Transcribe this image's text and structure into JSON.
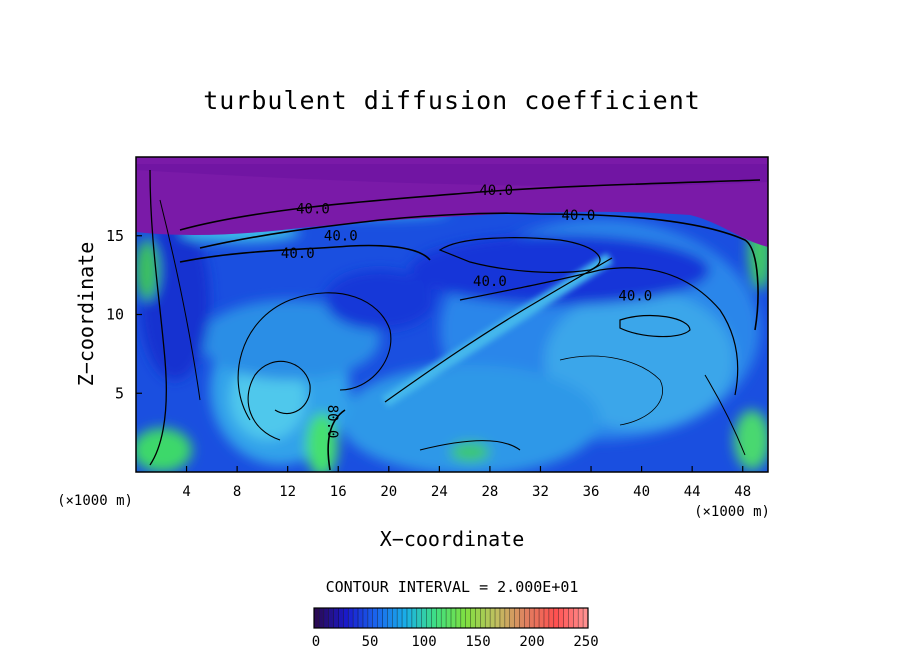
{
  "chart_data": {
    "type": "heatmap",
    "title": "turbulent diffusion coefficient",
    "xlabel": "X−coordinate",
    "ylabel": "Z−coordinate",
    "x_unit": "(×1000 m)",
    "z_unit": "(×1000 m)",
    "xlim": [
      0,
      50
    ],
    "ylim": [
      0,
      20
    ],
    "x_ticks": [
      4,
      8,
      12,
      16,
      20,
      24,
      28,
      32,
      36,
      40,
      44,
      48
    ],
    "y_ticks": [
      5,
      10,
      15
    ],
    "contour_interval_text": "CONTOUR INTERVAL = 2.000E+01",
    "contour_labels": [
      {
        "text": "40.0",
        "x": 28.5,
        "z": 17.6
      },
      {
        "text": "40.0",
        "x": 35.0,
        "z": 16.0
      },
      {
        "text": "40.0",
        "x": 14.0,
        "z": 16.4
      },
      {
        "text": "40.0",
        "x": 16.2,
        "z": 14.7
      },
      {
        "text": "40.0",
        "x": 12.8,
        "z": 13.6
      },
      {
        "text": "40.0",
        "x": 28.0,
        "z": 11.8
      },
      {
        "text": "40.0",
        "x": 39.5,
        "z": 10.9
      },
      {
        "text": "80.0",
        "x": 15.2,
        "z": 3.2
      }
    ],
    "colorbar": {
      "range": [
        0,
        250
      ],
      "tick_labels": [
        "0",
        "50",
        "100",
        "150",
        "200",
        "250"
      ],
      "colors": [
        "#2a0a55",
        "#1a1acc",
        "#1a66ee",
        "#1ab0e8",
        "#40e080",
        "#80e040",
        "#c0c060",
        "#e08060",
        "#ff5050",
        "#ff9090"
      ]
    },
    "field_colors": {
      "top_layer": "#7a1aa8",
      "deep_blue": "#1630d8",
      "mid_blue": "#1a5ee8",
      "light_blue": "#2a9ae6",
      "cyan": "#48c4e8",
      "green": "#40e060"
    }
  }
}
